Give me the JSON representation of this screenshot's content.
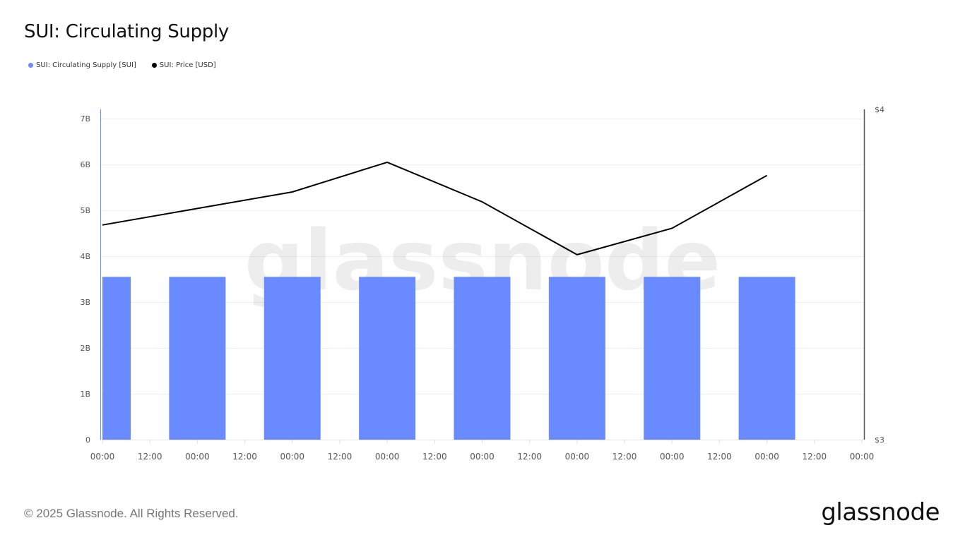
{
  "header": {
    "title": "SUI: Circulating Supply"
  },
  "legend": [
    {
      "label": "SUI: Circulating Supply [SUI]",
      "color": "#6a8aff"
    },
    {
      "label": "SUI: Price [USD]",
      "color": "#000000"
    }
  ],
  "watermark": "glassnode",
  "footer": {
    "copyright": "© 2025 Glassnode. All Rights Reserved.",
    "logo": "glassnode"
  },
  "chart_data": {
    "type": "bar+line",
    "title": "SUI: Circulating Supply",
    "x": [
      "00:00",
      "12:00",
      "00:00",
      "12:00",
      "00:00",
      "12:00",
      "00:00",
      "12:00",
      "00:00",
      "12:00",
      "00:00",
      "12:00",
      "00:00",
      "12:00",
      "00:00",
      "12:00",
      "00:00"
    ],
    "left_axis": {
      "label": "Circulating Supply [SUI]",
      "ticks": [
        "0",
        "1B",
        "2B",
        "3B",
        "4B",
        "5B",
        "6B",
        "7B"
      ],
      "range": [
        0,
        7000000000
      ]
    },
    "right_axis": {
      "label": "Price [USD]",
      "ticks": [
        "$3",
        "$4"
      ],
      "range": [
        3,
        4
      ]
    },
    "series": [
      {
        "name": "SUI: Circulating Supply [SUI]",
        "type": "bar",
        "color": "#6a8aff",
        "axis": "left",
        "x": [
          "00:00",
          "00:00",
          "00:00",
          "00:00",
          "00:00",
          "00:00",
          "00:00",
          "00:00"
        ],
        "values": [
          3550000000,
          3550000000,
          3550000000,
          3550000000,
          3550000000,
          3550000000,
          3550000000,
          3550000000
        ]
      },
      {
        "name": "SUI: Price [USD]",
        "type": "line",
        "color": "#000000",
        "axis": "right",
        "x": [
          "00:00",
          "00:00",
          "00:00",
          "00:00",
          "00:00",
          "00:00",
          "00:00",
          "00:00"
        ],
        "values": [
          3.65,
          3.7,
          3.75,
          3.84,
          3.72,
          3.56,
          3.64,
          3.8
        ]
      }
    ],
    "grid": true,
    "legend_position": "top-left"
  }
}
